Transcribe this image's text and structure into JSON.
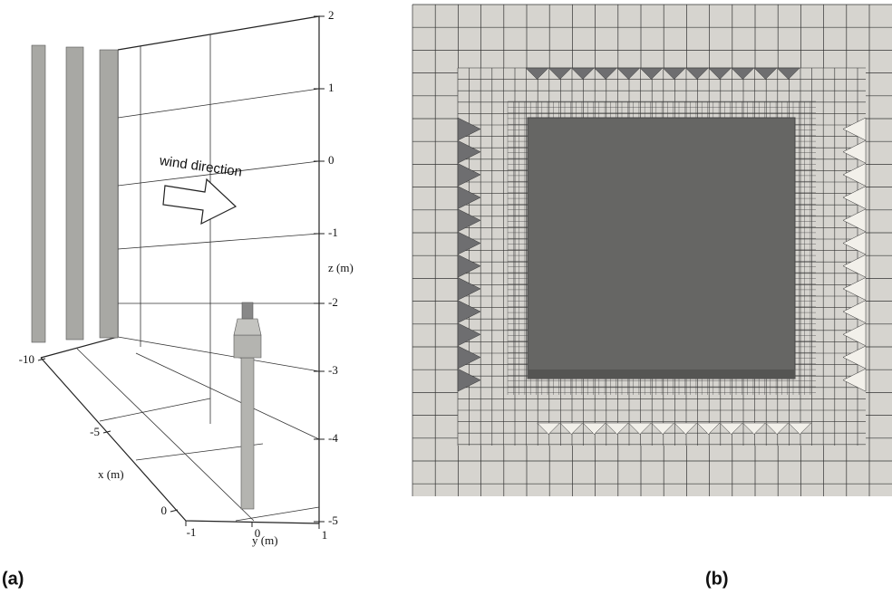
{
  "panel_a": {
    "label": "(a)",
    "annotation": "wind direction",
    "z_axis": {
      "title": "z (m)",
      "ticks": [
        2,
        1,
        0,
        -1,
        -2,
        -3,
        -4,
        -5
      ]
    },
    "x_axis": {
      "title": "x (m)",
      "ticks": [
        -10,
        -5,
        0
      ]
    },
    "y_axis": {
      "title": "y (m)",
      "ticks": [
        -1,
        0,
        1
      ]
    }
  },
  "panel_b": {
    "label": "(b)"
  }
}
